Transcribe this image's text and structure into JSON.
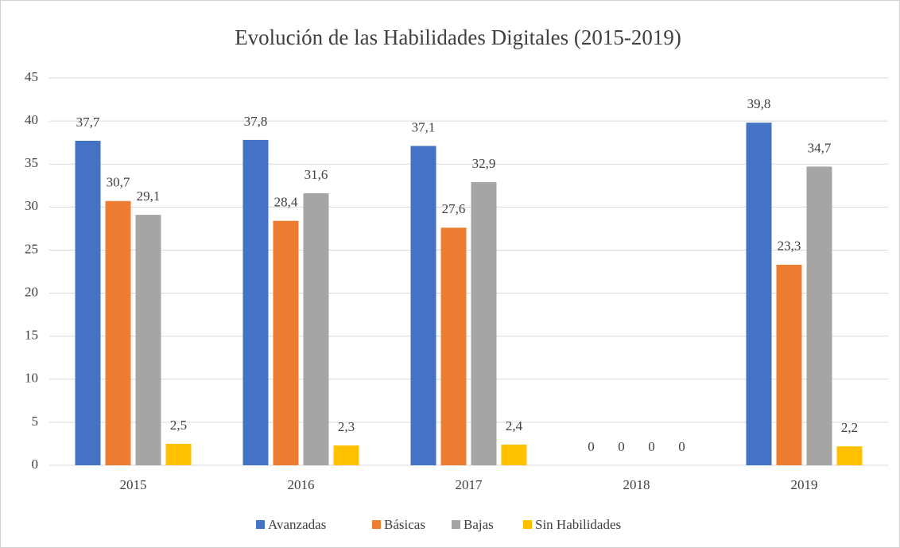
{
  "chart_data": {
    "type": "bar",
    "title": "Evolución de las Habilidades Digitales (2015-2019)",
    "categories": [
      "2015",
      "2016",
      "2017",
      "2018",
      "2019"
    ],
    "series": [
      {
        "name": "Avanzadas",
        "color": "#4472c4",
        "values": [
          37.7,
          37.8,
          37.1,
          0,
          39.8
        ],
        "value_labels": [
          "37,7",
          "37,8",
          "37,1",
          "0",
          "39,8"
        ]
      },
      {
        "name": "Básicas",
        "color": "#ed7d31",
        "values": [
          30.7,
          28.4,
          27.6,
          0,
          23.3
        ],
        "value_labels": [
          "30,7",
          "28,4",
          "27,6",
          "0",
          "23,3"
        ]
      },
      {
        "name": "Bajas",
        "color": "#a5a5a5",
        "values": [
          29.1,
          31.6,
          32.9,
          0,
          34.7
        ],
        "value_labels": [
          "29,1",
          "31,6",
          "32,9",
          "0",
          "34,7"
        ]
      },
      {
        "name": "Sin Habilidades",
        "color": "#ffc000",
        "values": [
          2.5,
          2.3,
          2.4,
          0,
          2.2
        ],
        "value_labels": [
          "2,5",
          "2,3",
          "2,4",
          "0",
          "2,2"
        ]
      }
    ],
    "ylim": [
      0,
      45
    ],
    "yticks": [
      0,
      5,
      10,
      15,
      20,
      25,
      30,
      35,
      40,
      45
    ],
    "grid": true,
    "legend": "bottom"
  }
}
